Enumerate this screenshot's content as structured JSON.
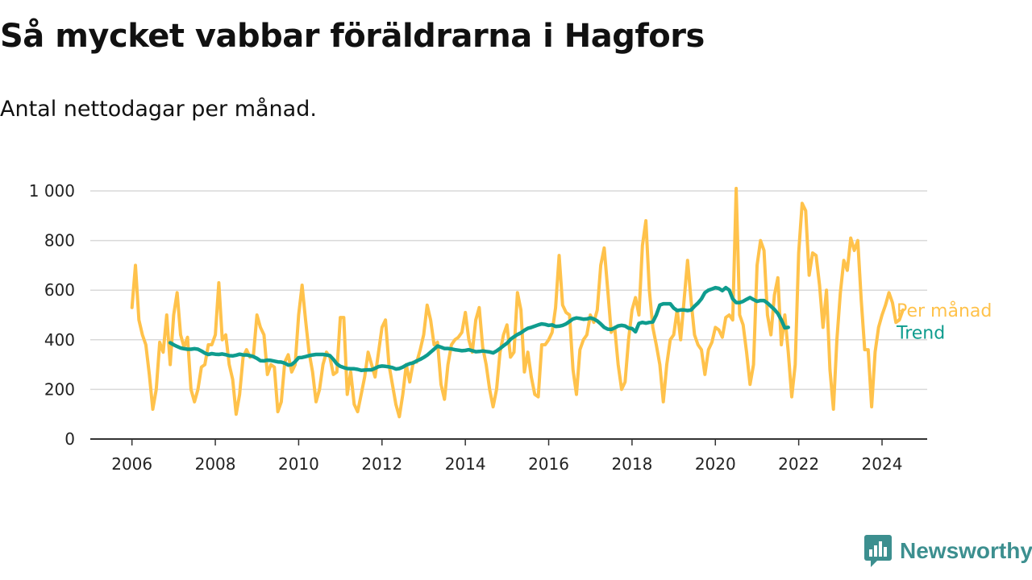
{
  "header": {
    "title": "Så mycket vabbar föräldrarna i Hagfors",
    "subtitle": "Antal nettodagar per månad."
  },
  "brand": {
    "name": "Newsworthy"
  },
  "colors": {
    "monthly": "#ffc24b",
    "trend": "#0f9c8e",
    "grid": "#d9d9d9",
    "axis": "#333333",
    "brand": "#3c8f8f"
  },
  "chart_data": {
    "type": "line",
    "title": "Så mycket vabbar föräldrarna i Hagfors",
    "subtitle": "Antal nettodagar per månad.",
    "x_ticks": [
      "2006",
      "2008",
      "2010",
      "2012",
      "2014",
      "2016",
      "2018",
      "2020",
      "2022",
      "2024"
    ],
    "y_ticks": [
      "0",
      "200",
      "400",
      "600",
      "800",
      "1 000"
    ],
    "ylim": [
      0,
      1000
    ],
    "xlim": [
      "2005-01",
      "2025-02"
    ],
    "grid": true,
    "series": [
      {
        "name": "Per månad",
        "color": "#ffc24b",
        "start": "2006-01",
        "values": [
          530,
          700,
          480,
          420,
          380,
          260,
          120,
          200,
          390,
          350,
          500,
          300,
          500,
          590,
          420,
          370,
          410,
          200,
          150,
          200,
          290,
          300,
          380,
          380,
          420,
          630,
          400,
          420,
          300,
          240,
          100,
          180,
          330,
          360,
          330,
          340,
          500,
          450,
          420,
          260,
          300,
          290,
          110,
          150,
          310,
          340,
          270,
          300,
          500,
          620,
          480,
          350,
          270,
          150,
          200,
          300,
          350,
          330,
          260,
          270,
          490,
          490,
          180,
          270,
          140,
          110,
          180,
          250,
          350,
          300,
          250,
          350,
          450,
          480,
          300,
          220,
          140,
          90,
          180,
          300,
          230,
          310,
          310,
          360,
          420,
          540,
          480,
          380,
          390,
          220,
          160,
          300,
          380,
          400,
          410,
          430,
          510,
          400,
          350,
          480,
          530,
          370,
          300,
          200,
          130,
          200,
          350,
          420,
          460,
          330,
          350,
          590,
          520,
          270,
          350,
          250,
          180,
          170,
          380,
          380,
          400,
          430,
          530,
          740,
          540,
          510,
          500,
          280,
          180,
          360,
          400,
          420,
          500,
          470,
          520,
          700,
          770,
          600,
          430,
          450,
          300,
          200,
          230,
          400,
          520,
          570,
          500,
          780,
          880,
          600,
          450,
          380,
          300,
          150,
          300,
          400,
          420,
          520,
          400,
          560,
          720,
          560,
          420,
          380,
          360,
          260,
          360,
          390,
          450,
          440,
          410,
          490,
          500,
          480,
          1010,
          500,
          460,
          350,
          220,
          300,
          700,
          800,
          760,
          500,
          420,
          580,
          650,
          380,
          500,
          350,
          170,
          300,
          750,
          950,
          920,
          660,
          750,
          740,
          620,
          450,
          600,
          280,
          120,
          400,
          590,
          720,
          680,
          810,
          760,
          800,
          560,
          360,
          360,
          130,
          350,
          450,
          500,
          540,
          590,
          550,
          470,
          480,
          520
        ]
      },
      {
        "name": "Trend",
        "color": "#0f9c8e",
        "start": "2006-12",
        "values": [
          388,
          380,
          373,
          367,
          364,
          362,
          362,
          364,
          362,
          355,
          346,
          341,
          344,
          342,
          341,
          343,
          340,
          336,
          335,
          338,
          342,
          339,
          339,
          336,
          332,
          325,
          316,
          315,
          318,
          317,
          314,
          311,
          310,
          306,
          298,
          300,
          312,
          328,
          329,
          332,
          336,
          339,
          341,
          341,
          341,
          339,
          336,
          321,
          303,
          293,
          288,
          284,
          283,
          283,
          281,
          277,
          278,
          279,
          279,
          285,
          292,
          294,
          293,
          291,
          288,
          282,
          284,
          290,
          298,
          304,
          307,
          315,
          321,
          329,
          338,
          350,
          362,
          375,
          370,
          365,
          365,
          363,
          360,
          358,
          356,
          357,
          360,
          356,
          352,
          353,
          355,
          353,
          351,
          347,
          355,
          365,
          376,
          386,
          402,
          412,
          421,
          428,
          438,
          446,
          450,
          455,
          460,
          464,
          462,
          458,
          460,
          454,
          455,
          458,
          464,
          474,
          484,
          488,
          486,
          483,
          484,
          488,
          484,
          476,
          464,
          450,
          443,
          442,
          448,
          456,
          458,
          456,
          447,
          445,
          432,
          466,
          470,
          467,
          470,
          472,
          500,
          540,
          545,
          545,
          545,
          528,
          518,
          520,
          520,
          518,
          520,
          535,
          548,
          565,
          590,
          600,
          605,
          610,
          607,
          598,
          610,
          600,
          565,
          550,
          550,
          555,
          563,
          570,
          562,
          555,
          558,
          558,
          548,
          535,
          522,
          506,
          480,
          448,
          450
        ]
      }
    ]
  }
}
